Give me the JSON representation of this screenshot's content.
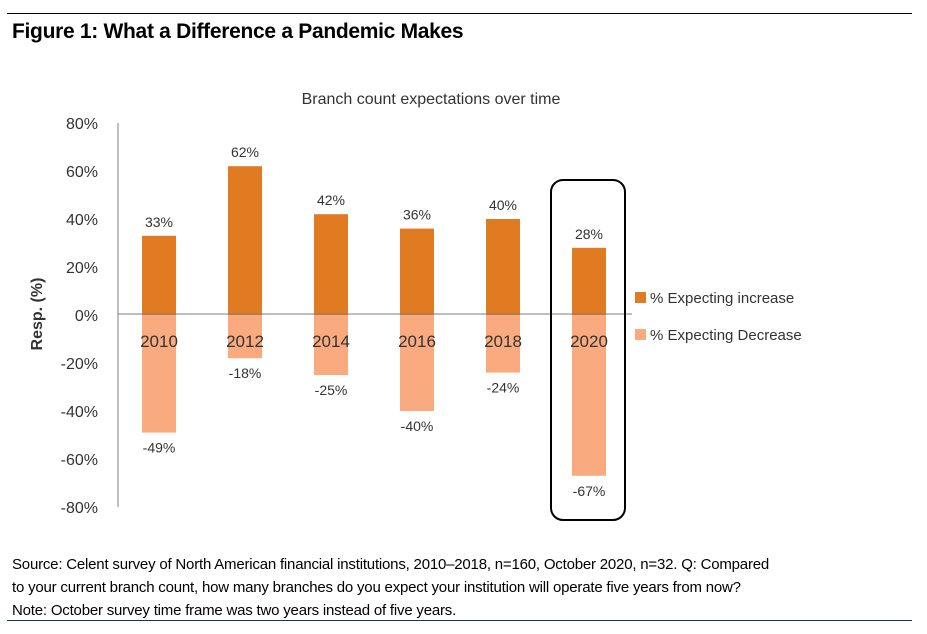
{
  "figure": {
    "title": "Figure 1: What a Difference a Pandemic Makes",
    "source_lines": [
      "Source: Celent survey of North American financial institutions, 2010–2018, n=160, October 2020, n=32. Q: Compared",
      "to your current branch count, how many branches do you expect your institution will operate five years from now?",
      "Note: October survey time frame was two years instead of five years."
    ]
  },
  "colors": {
    "increase": "#e07b21",
    "decrease": "#f9ab7f",
    "axis": "#7f7f7f",
    "text": "#333333",
    "highlight_box": "#000000"
  },
  "chart_data": {
    "type": "bar",
    "title": "Branch count expectations over time",
    "xlabel": "",
    "ylabel": "Resp. (%)",
    "ylim": [
      -80,
      80
    ],
    "yticks": [
      80,
      60,
      40,
      20,
      0,
      -20,
      -40,
      -60,
      -80
    ],
    "ytick_labels": [
      "80%",
      "60%",
      "40%",
      "20%",
      "0%",
      "-20%",
      "-40%",
      "-60%",
      "-80%"
    ],
    "categories": [
      "2010",
      "2012",
      "2014",
      "2016",
      "2018",
      "2020"
    ],
    "series": [
      {
        "name": "% Expecting increase",
        "values": [
          33,
          62,
          42,
          36,
          40,
          28
        ],
        "labels": [
          "33%",
          "62%",
          "42%",
          "36%",
          "40%",
          "28%"
        ]
      },
      {
        "name": "% Expecting Decrease",
        "values": [
          -49,
          -18,
          -25,
          -40,
          -24,
          -67
        ],
        "labels": [
          "-49%",
          "-18%",
          "-25%",
          "-40%",
          "-24%",
          "-67%"
        ]
      }
    ],
    "highlighted_category": "2020",
    "legend_position": "right",
    "grid": false,
    "stacked": true
  }
}
